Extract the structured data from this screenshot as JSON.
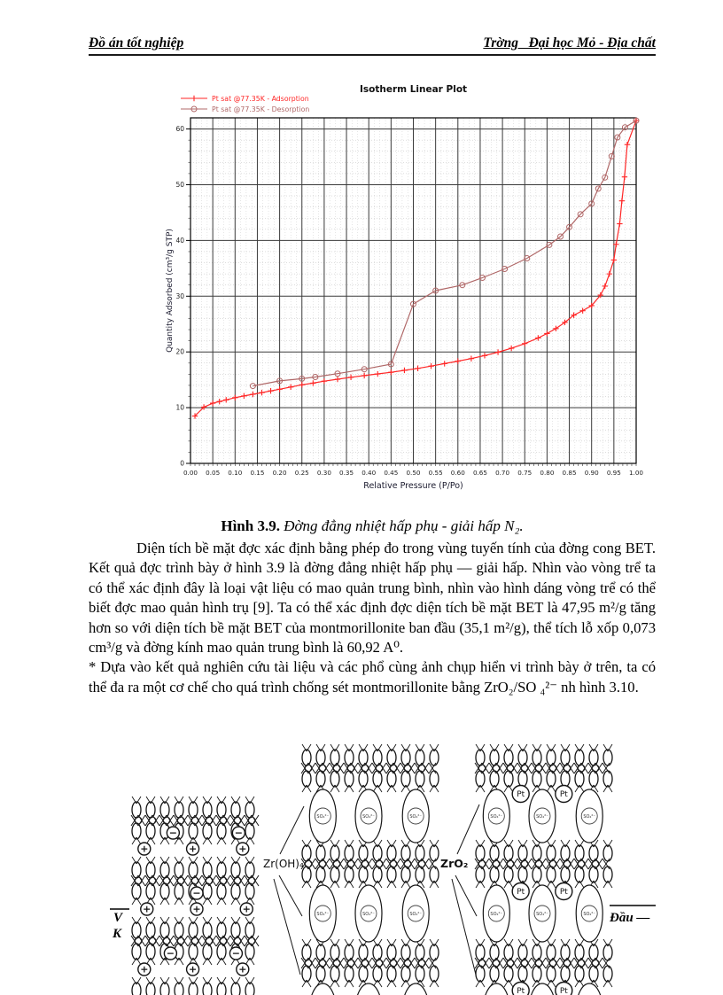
{
  "header": {
    "left": "Đồ án tốt nghiệp",
    "right": "Trờng   Đại học Mỏ - Địa chất"
  },
  "figure": {
    "caption_label": "Hình 3.9.",
    "caption_text": " Đờng  đẳng nhiệt hấp phụ - giải hấp N₂."
  },
  "paragraphs": [
    "Diện tích bề mặt đợc  xác định bằng phép đo trong vùng tuyến tính của đờng  cong BET. Kết quả đợc  trình bày ở hình 3.9 là đờng  đẳng nhiệt hấp phụ — giải hấp. Nhìn vào vòng trể ta có thể xác định đây là loại vật liệu có mao quản trung bình, nhìn vào hình dáng vòng trể có thể biết đợc  mao quản hình trụ [9]. Ta có thể xác định đợc  diện tích bề mặt BET là 47,95 m²/g tăng hơn so với diện tích bề mặt BET của montmorillonite ban đầu (35,1 m²/g), thể tích lỗ xốp 0,073 cm³/g và đờng  kính mao quản trung bình là 60,92 A⁰.",
    "* Dựa vào kết quả nghiên cứu tài liệu và các phổ cùng ảnh chụp hiển vi trình bày ở trên, ta có thể đa  ra một cơ chế cho quá trình chống sét montmorillonite bằng ZrO₂/SO ₄²⁻ nh  hình 3.10."
  ],
  "chart_data": {
    "type": "line",
    "title": "Isotherm Linear Plot",
    "xlabel": "Relative Pressure (P/Po)",
    "ylabel": "Quantity Adsorbed (cm³/g STP)",
    "xlim": [
      0,
      1.0
    ],
    "ylim": [
      0,
      62
    ],
    "xtick_step": 0.05,
    "ytick_step": 10,
    "yticks": [
      0,
      10,
      20,
      30,
      40,
      50,
      60
    ],
    "grid": true,
    "legend_position": "top-left",
    "frame_color": "#3a3a3a",
    "series": [
      {
        "name": "Pt sat @77.35K - Adsorption",
        "color": "#ff2626",
        "marker": "plus",
        "points": [
          [
            0.01,
            8.5
          ],
          [
            0.03,
            10.1
          ],
          [
            0.05,
            10.8
          ],
          [
            0.065,
            11.1
          ],
          [
            0.08,
            11.4
          ],
          [
            0.1,
            11.8
          ],
          [
            0.12,
            12.1
          ],
          [
            0.14,
            12.4
          ],
          [
            0.16,
            12.7
          ],
          [
            0.18,
            13.0
          ],
          [
            0.2,
            13.3
          ],
          [
            0.225,
            13.7
          ],
          [
            0.25,
            14.1
          ],
          [
            0.275,
            14.4
          ],
          [
            0.3,
            14.75
          ],
          [
            0.33,
            15.1
          ],
          [
            0.36,
            15.45
          ],
          [
            0.39,
            15.75
          ],
          [
            0.42,
            16.05
          ],
          [
            0.45,
            16.35
          ],
          [
            0.48,
            16.7
          ],
          [
            0.51,
            17.05
          ],
          [
            0.54,
            17.45
          ],
          [
            0.57,
            17.9
          ],
          [
            0.6,
            18.35
          ],
          [
            0.63,
            18.8
          ],
          [
            0.66,
            19.35
          ],
          [
            0.69,
            19.95
          ],
          [
            0.72,
            20.65
          ],
          [
            0.75,
            21.5
          ],
          [
            0.78,
            22.5
          ],
          [
            0.8,
            23.3
          ],
          [
            0.82,
            24.2
          ],
          [
            0.84,
            25.3
          ],
          [
            0.86,
            26.6
          ],
          [
            0.88,
            27.4
          ],
          [
            0.9,
            28.3
          ],
          [
            0.92,
            30.2
          ],
          [
            0.93,
            31.8
          ],
          [
            0.94,
            34.0
          ],
          [
            0.95,
            36.5
          ],
          [
            0.955,
            39.3
          ],
          [
            0.963,
            43.0
          ],
          [
            0.968,
            47.1
          ],
          [
            0.974,
            51.4
          ],
          [
            0.98,
            57.2
          ],
          [
            1.0,
            61.5
          ]
        ]
      },
      {
        "name": "Pt sat @77.35K - Desorption",
        "color": "#b06868",
        "marker": "circle",
        "points": [
          [
            0.14,
            13.9
          ],
          [
            0.2,
            14.8
          ],
          [
            0.25,
            15.2
          ],
          [
            0.28,
            15.5
          ],
          [
            0.33,
            16.1
          ],
          [
            0.39,
            16.9
          ],
          [
            0.45,
            17.8
          ],
          [
            0.5,
            28.6
          ],
          [
            0.55,
            31.0
          ],
          [
            0.61,
            32.0
          ],
          [
            0.655,
            33.3
          ],
          [
            0.705,
            34.9
          ],
          [
            0.755,
            36.8
          ],
          [
            0.805,
            39.2
          ],
          [
            0.83,
            40.7
          ],
          [
            0.85,
            42.4
          ],
          [
            0.875,
            44.7
          ],
          [
            0.9,
            46.6
          ],
          [
            0.915,
            49.3
          ],
          [
            0.93,
            51.3
          ],
          [
            0.945,
            55.1
          ],
          [
            0.958,
            58.5
          ],
          [
            0.975,
            60.3
          ],
          [
            1.0,
            61.5
          ]
        ]
      }
    ]
  },
  "diagram": {
    "pillar_label": "Zr(OH)₄",
    "oxide_label": "ZrO₂",
    "sulfate_label": "SO₄²⁻",
    "pt_label": "Pt",
    "plus_sign": "+",
    "minus_sign": "−",
    "left_margin_top": "V",
    "left_margin_bottom": "K",
    "right_margin": "Đầu —"
  }
}
